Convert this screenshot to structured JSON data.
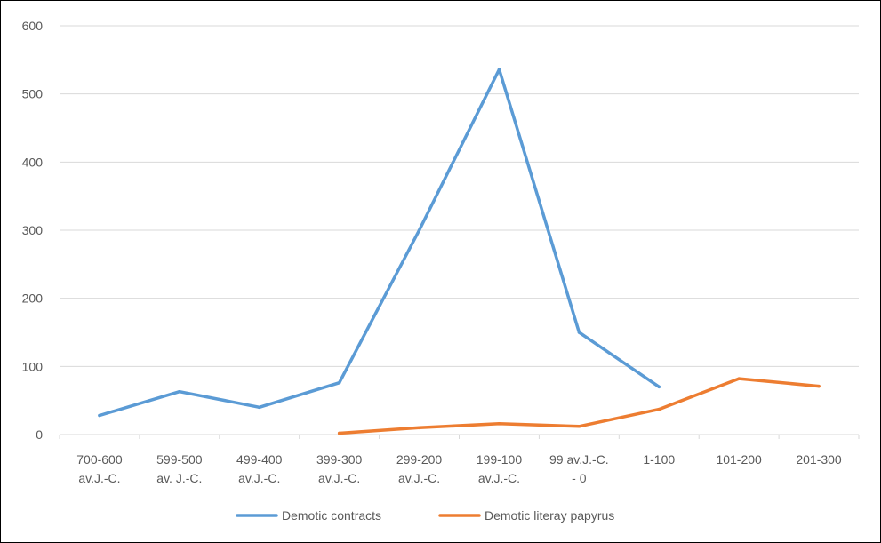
{
  "chart_data": {
    "type": "line",
    "title": "",
    "xlabel": "",
    "ylabel": "",
    "ylim": [
      0,
      600
    ],
    "yticks": [
      "0",
      "100",
      "200",
      "300",
      "400",
      "500",
      "600"
    ],
    "grid": true,
    "legend_position": "bottom",
    "categories": [
      [
        "700-600",
        "av.J.-C."
      ],
      [
        "599-500",
        "av. J.-C."
      ],
      [
        "499-400",
        "av.J.-C."
      ],
      [
        "399-300",
        "av.J.-C."
      ],
      [
        "299-200",
        "av.J.-C."
      ],
      [
        "199-100",
        "av.J.-C."
      ],
      [
        "99 av.J.-C.",
        "- 0"
      ],
      [
        "1-100",
        ""
      ],
      [
        "101-200",
        ""
      ],
      [
        "201-300",
        ""
      ]
    ],
    "series": [
      {
        "name": "Demotic contracts",
        "color": "#5b9bd5",
        "values": [
          28,
          63,
          40,
          76,
          300,
          536,
          150,
          70,
          null,
          null
        ]
      },
      {
        "name": "Demotic literay papyrus",
        "color": "#ed7d31",
        "values": [
          null,
          null,
          null,
          2,
          10,
          16,
          12,
          37,
          82,
          71
        ]
      }
    ]
  }
}
